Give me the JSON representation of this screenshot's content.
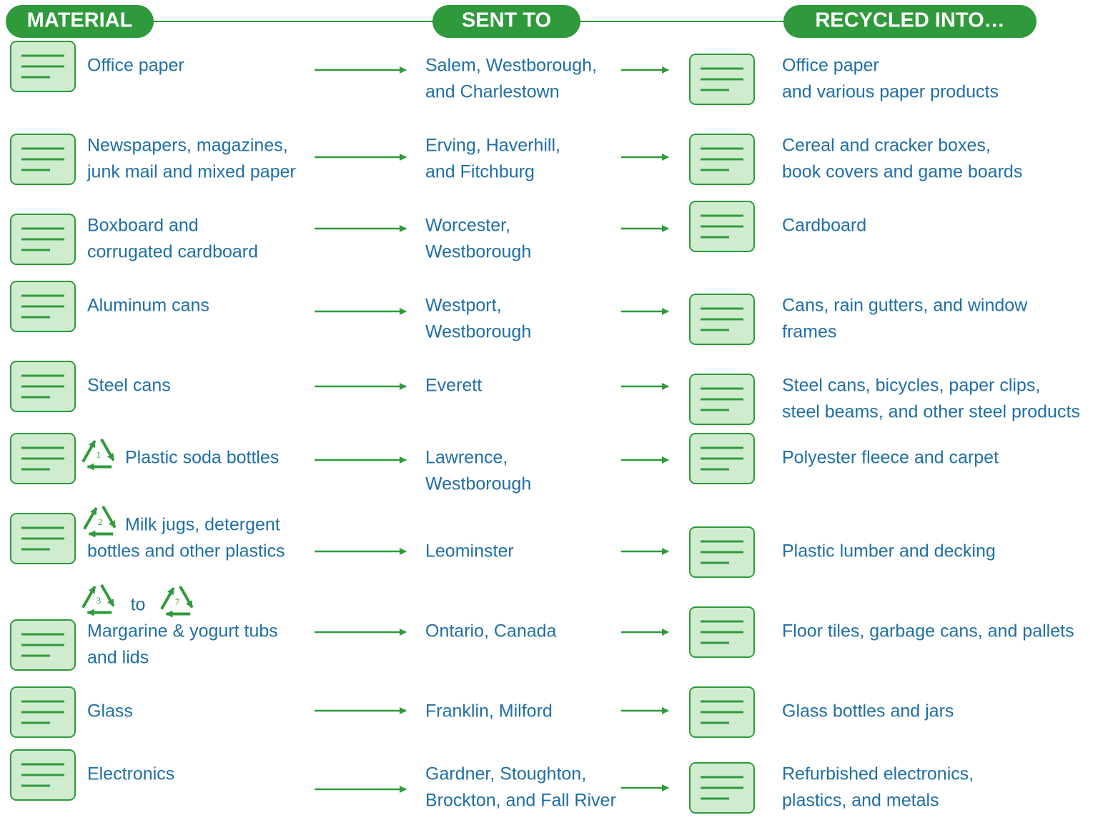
{
  "header": {
    "columns": [
      "MATERIAL",
      "SENT TO",
      "RECYCLED INTO…"
    ]
  },
  "rows": [
    {
      "material": [
        "Office paper"
      ],
      "sent_to": [
        "Salem, Westborough,",
        "and Charlestown"
      ],
      "recycled_into": [
        "Office paper",
        "and various paper products"
      ]
    },
    {
      "material": [
        "Newspapers, magazines,",
        "junk mail and mixed paper"
      ],
      "sent_to": [
        "Erving, Haverhill,",
        "and Fitchburg"
      ],
      "recycled_into": [
        "Cereal and cracker boxes,",
        "book covers and game boards"
      ]
    },
    {
      "material": [
        "Boxboard and",
        "corrugated cardboard"
      ],
      "sent_to": [
        "Worcester,",
        "Westborough"
      ],
      "recycled_into": [
        "Cardboard"
      ]
    },
    {
      "material": [
        "Aluminum cans"
      ],
      "sent_to": [
        "Westport,",
        "Westborough"
      ],
      "recycled_into": [
        "Cans, rain gutters, and window",
        "frames"
      ]
    },
    {
      "material": [
        "Steel cans"
      ],
      "sent_to": [
        "Everett"
      ],
      "recycled_into": [
        "Steel cans, bicycles, paper clips,",
        "steel beams, and other steel products"
      ]
    },
    {
      "resin_codes": [
        "1"
      ],
      "material": [
        "Plastic soda bottles"
      ],
      "sent_to": [
        "Lawrence,",
        "Westborough"
      ],
      "recycled_into": [
        "Polyester fleece and carpet"
      ]
    },
    {
      "resin_codes": [
        "2"
      ],
      "material": [
        "Milk jugs, detergent",
        "bottles and other plastics"
      ],
      "sent_to": [
        "Leominster"
      ],
      "recycled_into": [
        "Plastic lumber and decking"
      ]
    },
    {
      "resin_codes": [
        "3",
        "7"
      ],
      "connector": "to",
      "material": [
        "Margarine & yogurt tubs",
        "and lids"
      ],
      "sent_to": [
        "Ontario, Canada"
      ],
      "recycled_into": [
        "Floor tiles, garbage cans, and pallets"
      ]
    },
    {
      "material": [
        "Glass"
      ],
      "sent_to": [
        "Franklin, Milford"
      ],
      "recycled_into": [
        "Glass bottles and jars"
      ]
    },
    {
      "material": [
        "Electronics"
      ],
      "sent_to": [
        "Gardner, Stoughton,",
        "Brockton, and Fall River"
      ],
      "recycled_into": [
        "Refurbished electronics,",
        "plastics, and metals"
      ]
    }
  ]
}
